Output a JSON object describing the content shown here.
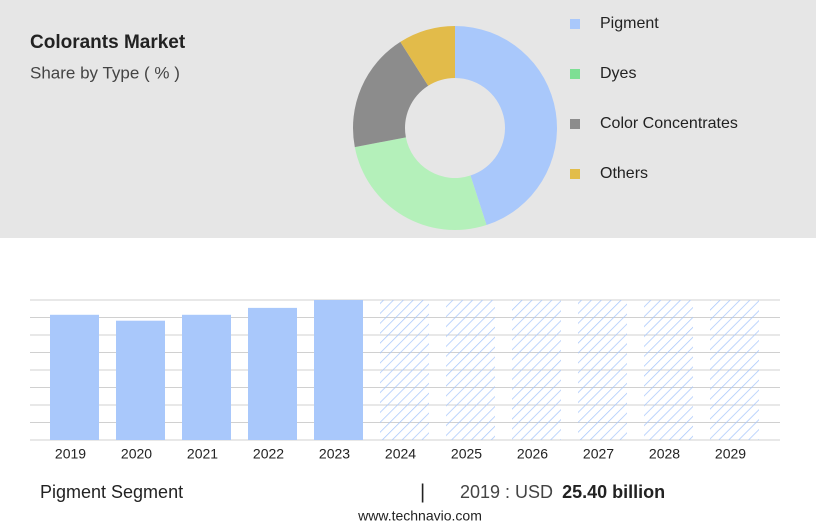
{
  "header": {
    "title": "Colorants Market",
    "subtitle": "Share by Type ( % )"
  },
  "chart_data": [
    {
      "type": "pie",
      "categories": [
        "Pigment",
        "Dyes",
        "Color Concentrates",
        "Others"
      ],
      "values": [
        45,
        27,
        19,
        9
      ],
      "colors": [
        "#a9c8fb",
        "#b4f0ba",
        "#8c8c8c",
        "#e2bb4a"
      ],
      "legend_colors": [
        "#a9c8fb",
        "#7ddf94",
        "#8c8c8c",
        "#e2bd4a"
      ],
      "legend": "right"
    },
    {
      "type": "bar",
      "categories": [
        "2019",
        "2020",
        "2021",
        "2022",
        "2023",
        "2024",
        "2025",
        "2026",
        "2027",
        "2028",
        "2029"
      ],
      "values": [
        25.4,
        24.2,
        25.4,
        26.8,
        28.4,
        null,
        null,
        null,
        null,
        null,
        null
      ],
      "color": "#a9c8fb",
      "ylim": [
        0,
        28.4
      ],
      "grid": true
    }
  ],
  "footer": {
    "segment": "Pigment Segment",
    "highlight_label": "2019 : USD",
    "highlight_value": "25.40 billion",
    "source": "www.technavio.com"
  }
}
